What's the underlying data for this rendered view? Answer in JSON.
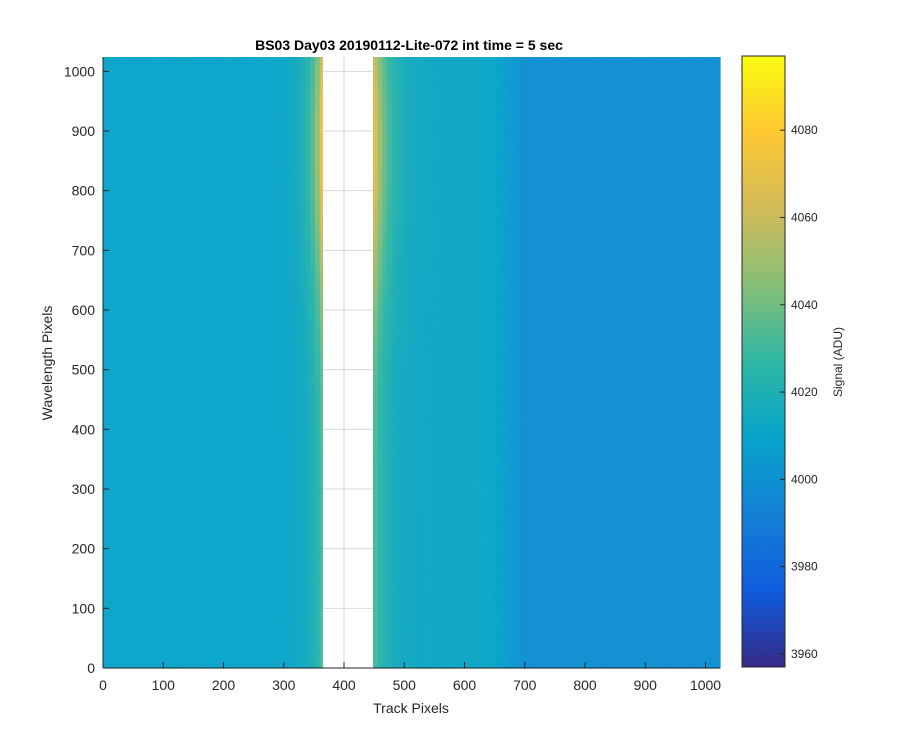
{
  "chart_data": {
    "type": "heatmap",
    "title": "BS03 Day03 20190112-Lite-072 int time = 5 sec",
    "xlabel": "Track Pixels",
    "ylabel": "Wavelength Pixels",
    "xlim": [
      0,
      1024
    ],
    "ylim": [
      0,
      1024
    ],
    "xticks": [
      0,
      100,
      200,
      300,
      400,
      500,
      600,
      700,
      800,
      900,
      1000
    ],
    "yticks": [
      0,
      100,
      200,
      300,
      400,
      500,
      600,
      700,
      800,
      900,
      1000
    ],
    "colormap": "parula",
    "colorbar": {
      "label": "Signal (ADU)",
      "range": [
        3957,
        4097
      ],
      "ticks": [
        3960,
        3980,
        4000,
        4020,
        4040,
        4060,
        4080
      ]
    },
    "masked_region": {
      "x_from": 365,
      "x_to": 448,
      "fill": "#ffffff"
    },
    "signal_profile": {
      "background_left_adu": 4010,
      "background_right_adu": 3999,
      "peak_near_gap_adu": 4075
    },
    "grid": true
  }
}
